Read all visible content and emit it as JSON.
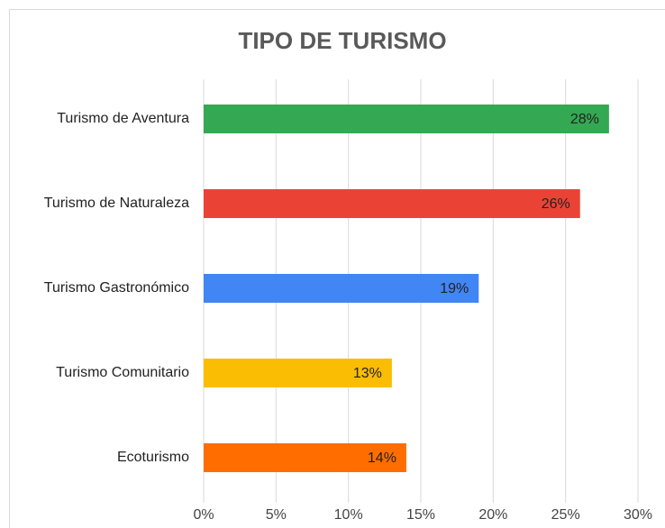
{
  "chart_data": {
    "type": "bar",
    "orientation": "horizontal",
    "title": "TIPO DE TURISMO",
    "categories": [
      "Turismo de Aventura",
      "Turismo de Naturaleza",
      "Turismo Gastronómico",
      "Turismo Comunitario",
      "Ecoturismo"
    ],
    "values": [
      28,
      26,
      19,
      13,
      14
    ],
    "value_labels": [
      "28%",
      "26%",
      "19%",
      "13%",
      "14%"
    ],
    "colors": [
      "#34a853",
      "#ea4335",
      "#4285f4",
      "#fbbc04",
      "#ff6d01"
    ],
    "xlim": [
      0,
      30
    ],
    "xticks": [
      {
        "value": 0,
        "label": "0%"
      },
      {
        "value": 5,
        "label": "5%"
      },
      {
        "value": 10,
        "label": "10%"
      },
      {
        "value": 15,
        "label": "15%"
      },
      {
        "value": 20,
        "label": "20%"
      },
      {
        "value": 25,
        "label": "25%"
      },
      {
        "value": 30,
        "label": "30%"
      }
    ],
    "grid": true
  }
}
